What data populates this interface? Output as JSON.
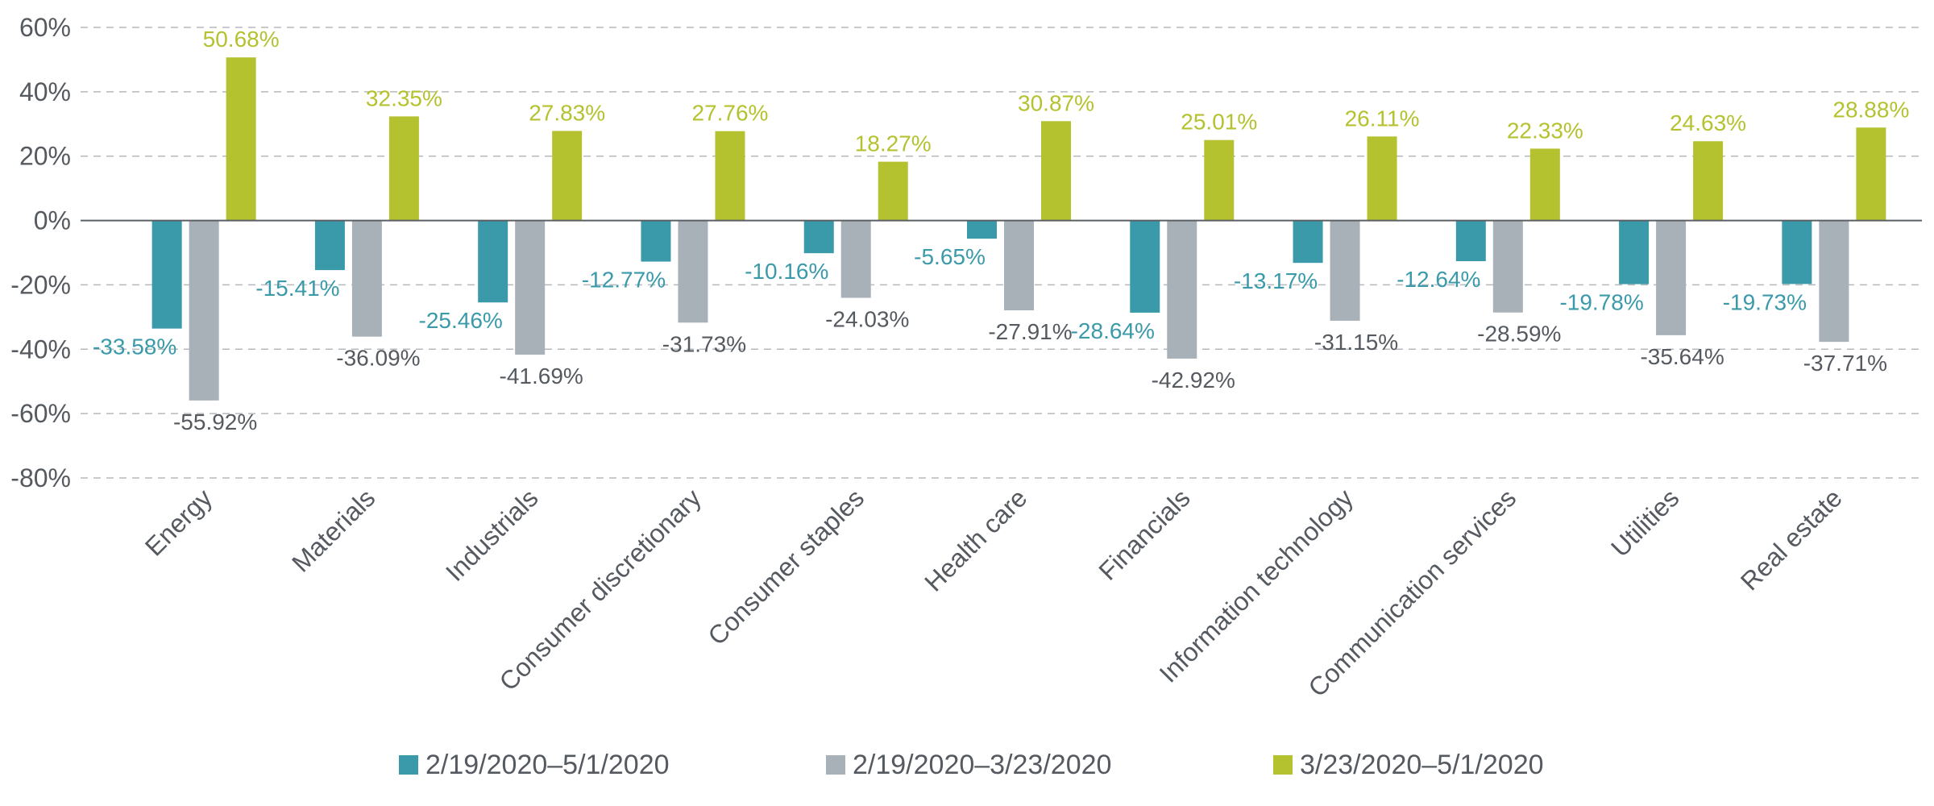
{
  "chart_data": {
    "type": "bar",
    "title": "",
    "xlabel": "",
    "ylabel": "",
    "ylim": [
      -80,
      60
    ],
    "yticks": [
      60,
      40,
      20,
      0,
      -20,
      -40,
      -60,
      -80
    ],
    "ytick_labels": [
      "60%",
      "40%",
      "20%",
      "0%",
      "-20%",
      "-40%",
      "-60%",
      "-80%"
    ],
    "grid": "horizontal dashed",
    "legend_position": "bottom",
    "categories": [
      "Energy",
      "Materials",
      "Industrials",
      "Consumer discretionary",
      "Consumer staples",
      "Health care",
      "Financials",
      "Information technology",
      "Communication services",
      "Utilities",
      "Real estate"
    ],
    "series": [
      {
        "name": "2/19/2020–5/1/2020",
        "color": "#3a9aa9",
        "label_color": "#3a9aa9",
        "values": [
          -33.58,
          -15.41,
          -25.46,
          -12.77,
          -10.16,
          -5.65,
          -28.64,
          -13.17,
          -12.64,
          -19.78,
          -19.73
        ],
        "labels": [
          "-33.58%",
          "-15.41%",
          "-25.46%",
          "-12.77%",
          "-10.16%",
          "-5.65%",
          "-28.64%",
          "-13.17%",
          "-12.64%",
          "-19.78%",
          "-19.73%"
        ]
      },
      {
        "name": "2/19/2020–3/23/2020",
        "color": "#a8b0b8",
        "label_color": "#555a60",
        "values": [
          -55.92,
          -36.09,
          -41.69,
          -31.73,
          -24.03,
          -27.91,
          -42.92,
          -31.15,
          -28.59,
          -35.64,
          -37.71
        ],
        "labels": [
          "-55.92%",
          "-36.09%",
          "-41.69%",
          "-31.73%",
          "-24.03%",
          "-27.91%",
          "-42.92%",
          "-31.15%",
          "-28.59%",
          "-35.64%",
          "-37.71%"
        ]
      },
      {
        "name": "3/23/2020–5/1/2020",
        "color": "#b5c230",
        "label_color": "#b5c230",
        "values": [
          50.68,
          32.35,
          27.83,
          27.76,
          18.27,
          30.87,
          25.01,
          26.11,
          22.33,
          24.63,
          28.88
        ],
        "labels": [
          "50.68%",
          "32.35%",
          "27.83%",
          "27.76%",
          "18.27%",
          "30.87%",
          "25.01%",
          "26.11%",
          "22.33%",
          "24.63%",
          "28.88%"
        ]
      }
    ]
  }
}
